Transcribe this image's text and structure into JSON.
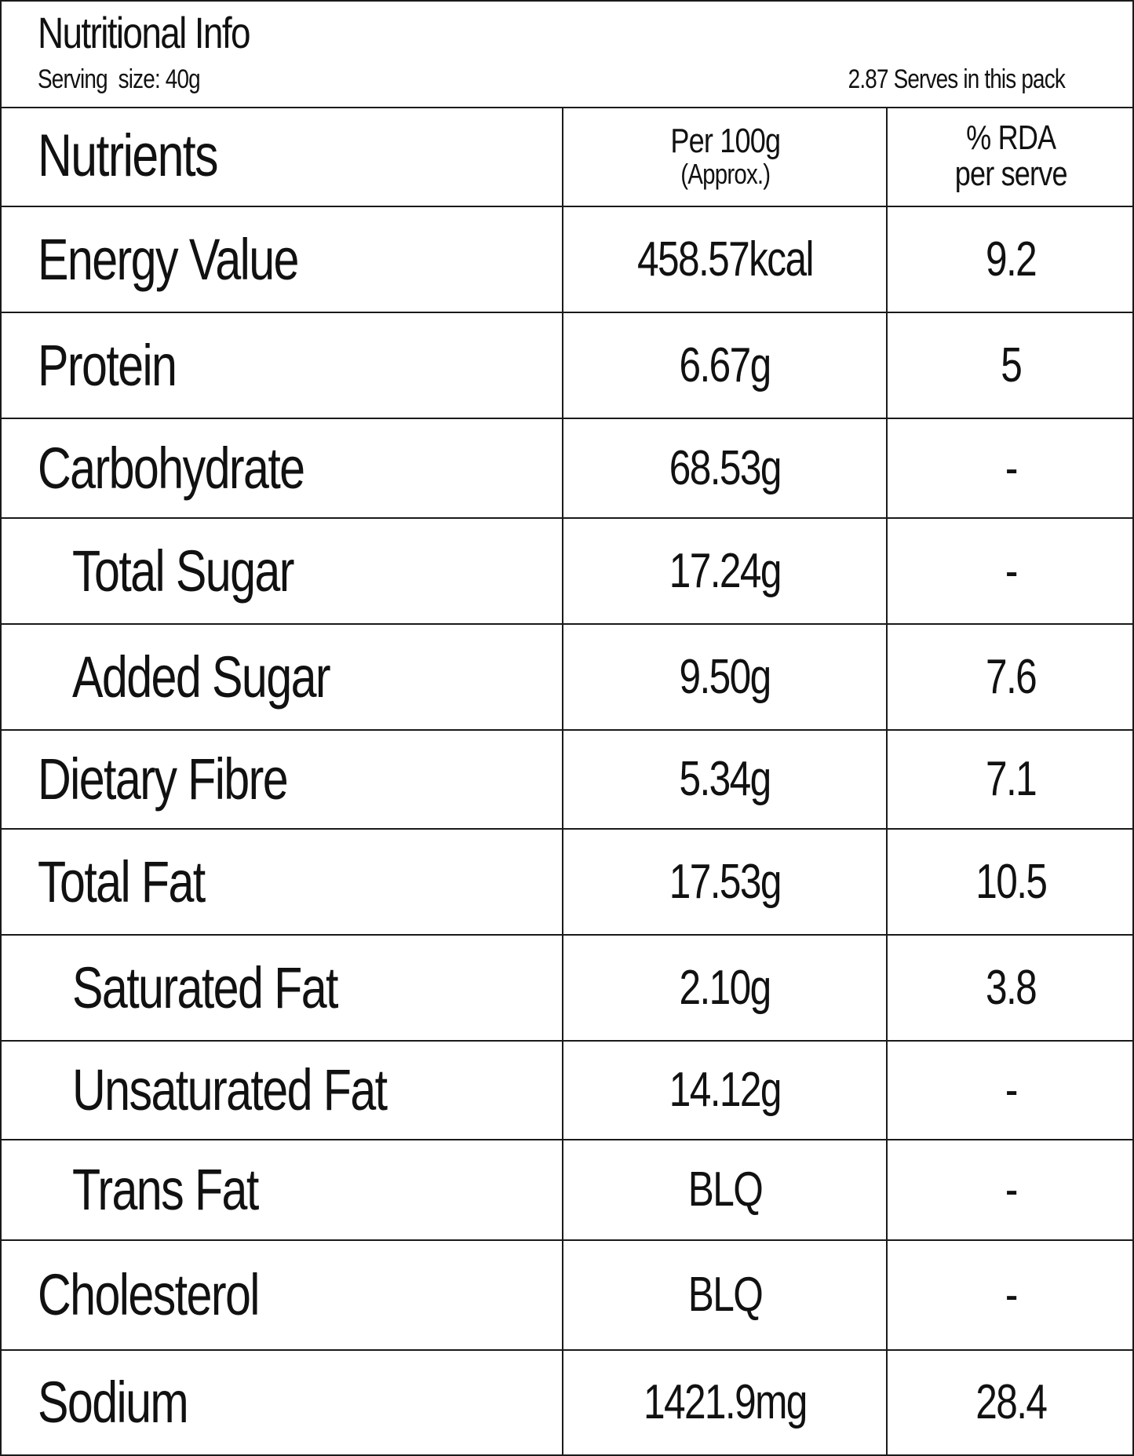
{
  "header": {
    "title": "Nutritional Info",
    "serving_size": "Serving  size: 40g",
    "serves_per_pack": "2.87 Serves in this pack"
  },
  "columns": {
    "nutrients": "Nutrients",
    "per100_line1": "Per 100g",
    "per100_line2": "(Approx.)",
    "rda_line1": "% RDA",
    "rda_line2": "per serve"
  },
  "rows": [
    {
      "name": "Energy Value",
      "per100": "458.57kcal",
      "rda": "9.2"
    },
    {
      "name": "Protein",
      "per100": "6.67g",
      "rda": "5"
    },
    {
      "name": "Carbohydrate",
      "per100": "68.53g",
      "rda": "-"
    },
    {
      "name": "Total Sugar",
      "per100": "17.24g",
      "rda": "-"
    },
    {
      "name": "Added Sugar",
      "per100": "9.50g",
      "rda": "7.6"
    },
    {
      "name": "Dietary Fibre",
      "per100": "5.34g",
      "rda": "7.1"
    },
    {
      "name": "Total Fat",
      "per100": "17.53g",
      "rda": "10.5"
    },
    {
      "name": "Saturated Fat",
      "per100": "2.10g",
      "rda": "3.8"
    },
    {
      "name": "Unsaturated Fat",
      "per100": "14.12g",
      "rda": "-"
    },
    {
      "name": "Trans Fat",
      "per100": "BLQ",
      "rda": "-"
    },
    {
      "name": "Cholesterol",
      "per100": "BLQ",
      "rda": "-"
    },
    {
      "name": "Sodium",
      "per100": "1421.9mg",
      "rda": "28.4"
    }
  ]
}
